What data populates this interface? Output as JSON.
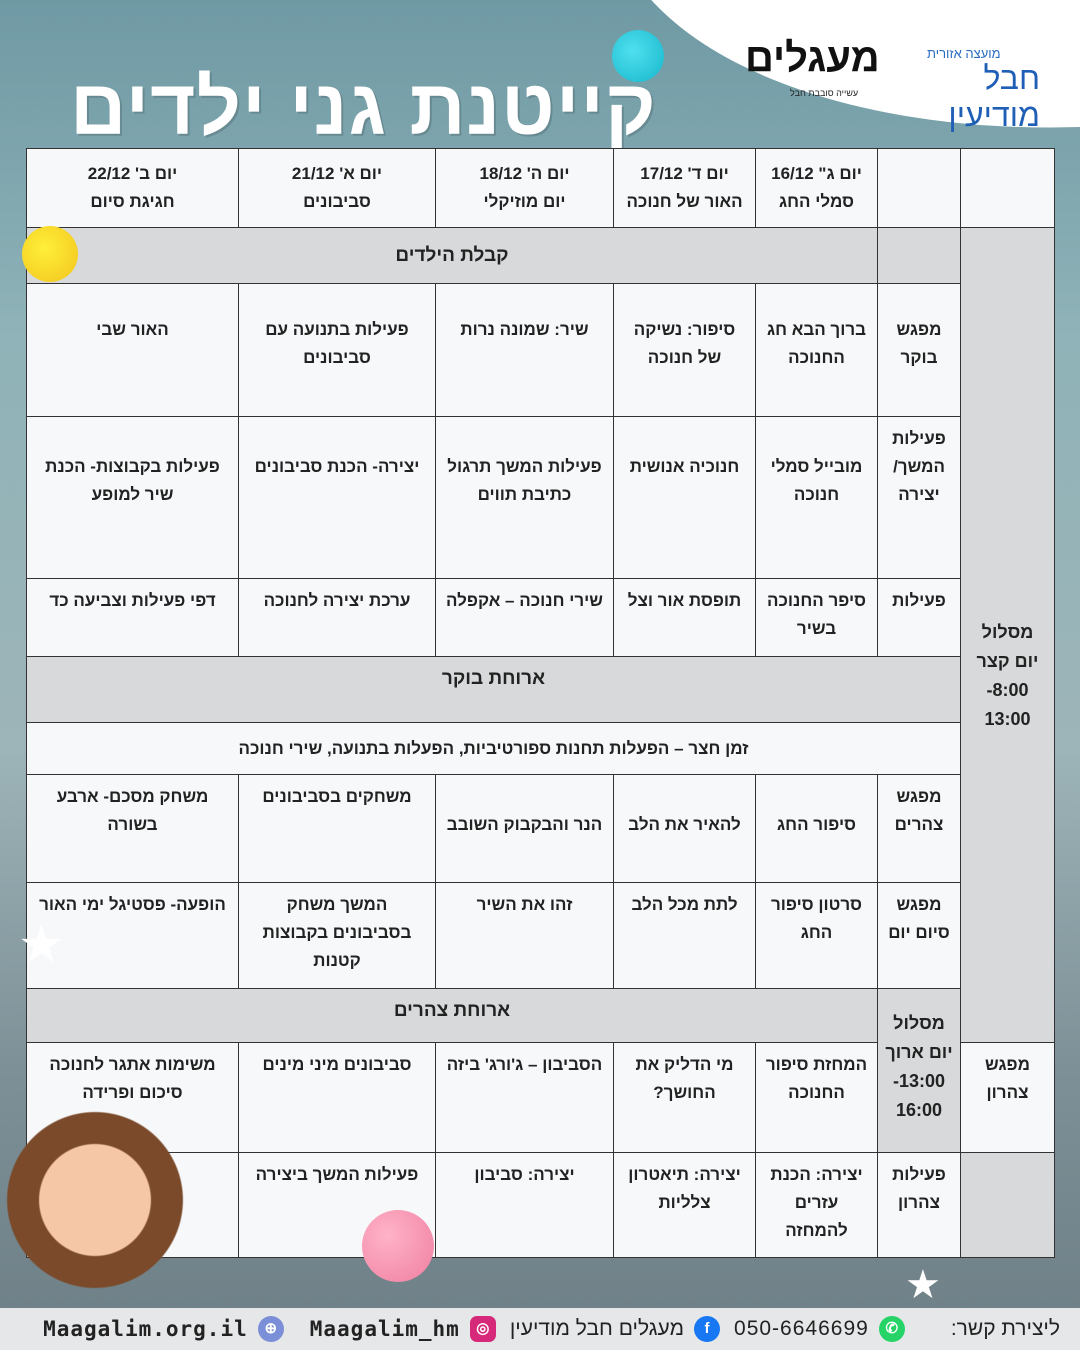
{
  "title": "קייטנת גני ילדים",
  "logos": {
    "maagalim": "מעגלים",
    "maagalim_sub": "עשייה סובבת חבל",
    "council_top": "מועצה אזורית",
    "council": "חבל מודיעין"
  },
  "days": [
    {
      "day": "יום ג\" 16/12",
      "theme": "סמלי החג"
    },
    {
      "day": "יום ד' 17/12",
      "theme": "האור של חנוכה"
    },
    {
      "day": "יום ה' 18/12",
      "theme": "יום מוזיקלי"
    },
    {
      "day": "יום א' 21/12",
      "theme": "סביבונים"
    },
    {
      "day": "יום ב' 22/12",
      "theme": "חגיגת סיום"
    }
  ],
  "short_route": {
    "label": "מסלול",
    "name": "יום קצר",
    "time_start": "8:00-",
    "time_end": "13:00"
  },
  "long_route": {
    "label": "מסלול",
    "name": "יום ארוך",
    "time_start": "13:00-",
    "time_end": "16:00"
  },
  "bands": {
    "reception": "קבלת הילדים",
    "breakfast": "ארוחת בוקר",
    "recess": "זמן חצר – הפעלות תחנות ספורטיביות, הפעלות בתנועה, שירי חנוכה",
    "lunch": "ארוחת צהרים"
  },
  "rows": [
    {
      "label": "מפגש בוקר",
      "cells": [
        "ברוך הבא חג החנוכה",
        "סיפור: נשיקה של חנוכה",
        "שיר: שמונה נרות",
        "פעילות בתנועה עם סביבונים",
        "האור שבי"
      ]
    },
    {
      "label": "פעילות המשך/ יצירה",
      "cells": [
        "מובייל סמלי חנוכה",
        "חנוכיה אנושית",
        "פעילות המשך תרגול כתיבת תווים",
        "יצירה- הכנת סביבונים",
        "פעילות בקבוצות- הכנת שיר למופע"
      ]
    },
    {
      "label": "פעילות",
      "cells": [
        "סיפר החנוכה בשיר",
        "תופסת אור וצל",
        "שירי חנוכה – אקפלה",
        "ערכת יצירה לחנוכה",
        "דפי פעילות וצביעה כד"
      ]
    },
    {
      "label": "מפגש צהרים",
      "cells": [
        "סיפור החג",
        "להאיר את הלב",
        "הנר והבקבוק השובב",
        "משחקים בסביבונים",
        "משחק מסכם- ארבע בשורה"
      ]
    },
    {
      "label": "מפגש סיום יום",
      "cells": [
        "סרטון סיפור החג",
        "לתת מכל הלב",
        "זהו את השיר",
        "המשך משחק בסביבונים בקבוצות קטנות",
        "הופעה- פסטיגל ימי האור"
      ]
    },
    {
      "label": "מפגש צהרון",
      "cells": [
        "המחזת סיפור החנוכה",
        "מי הדליק את החושך?",
        "הסביבון – ג'ורג' ביזה",
        "סביבונים מיני מינים",
        "משימות אתגר לחנוכה סיכום ופרידה"
      ]
    },
    {
      "label": "פעילות צהרון",
      "cells": [
        "יצירה: הכנת עזרים להמחזה",
        "יצירה: תיאטרון צלליות",
        "יצירה: סביבון",
        "פעילות המשך ביצירה",
        ""
      ]
    }
  ],
  "footer": {
    "contact": "ליצירת קשר:",
    "phone": "050-6646699",
    "facebook": "מעגלים חבל מודיעין",
    "instagram": "Maagalim_hm",
    "website": "Maagalim.org.il"
  },
  "colors": {
    "whatsapp": "#25d366",
    "facebook": "#1877f2",
    "instagram": "#d6297a",
    "web": "#7b8fd8"
  }
}
